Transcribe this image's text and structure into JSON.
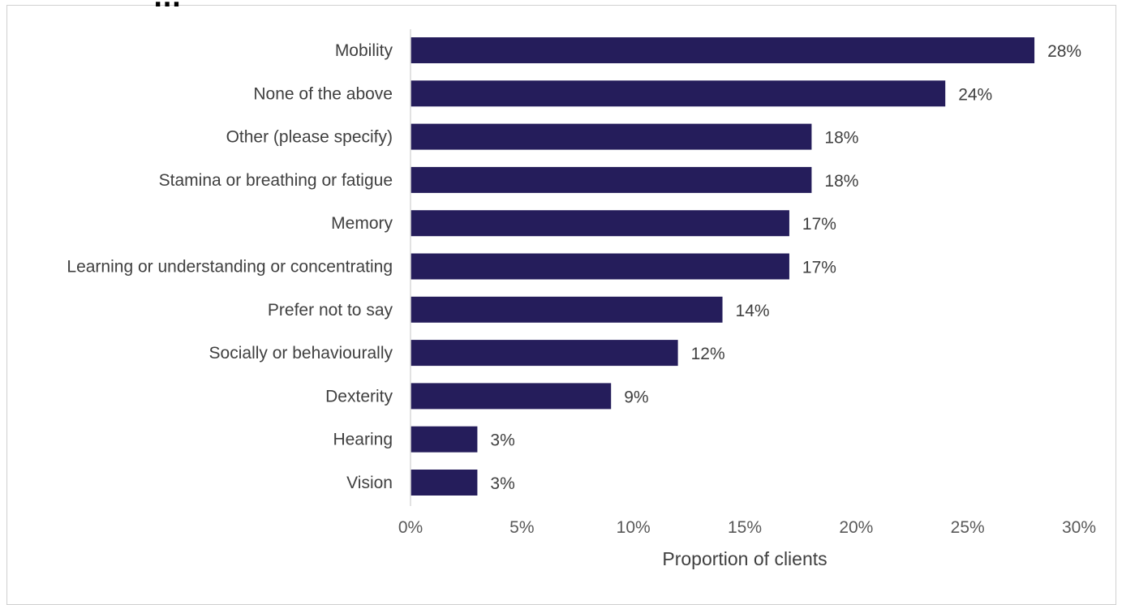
{
  "title_fragment": "...",
  "chart_data": {
    "type": "bar",
    "orientation": "horizontal",
    "title": "",
    "categories": [
      "Mobility",
      "None of the above",
      "Other (please specify)",
      "Stamina or breathing or fatigue",
      "Memory",
      "Learning or understanding or concentrating",
      "Prefer not to say",
      "Socially or behaviourally",
      "Dexterity",
      "Hearing",
      "Vision"
    ],
    "values": [
      28,
      24,
      18,
      18,
      17,
      17,
      14,
      12,
      9,
      3,
      3
    ],
    "value_labels": [
      "28%",
      "24%",
      "18%",
      "18%",
      "17%",
      "17%",
      "14%",
      "12%",
      "9%",
      "3%",
      "3%"
    ],
    "xlabel": "Proportion of clients",
    "ylabel": "",
    "xlim": [
      0,
      30
    ],
    "xticks": [
      0,
      5,
      10,
      15,
      20,
      25,
      30
    ],
    "xtick_labels": [
      "0%",
      "5%",
      "10%",
      "15%",
      "20%",
      "25%",
      "30%"
    ],
    "bar_color": "#251d5b",
    "grid": false,
    "legend": "none"
  }
}
